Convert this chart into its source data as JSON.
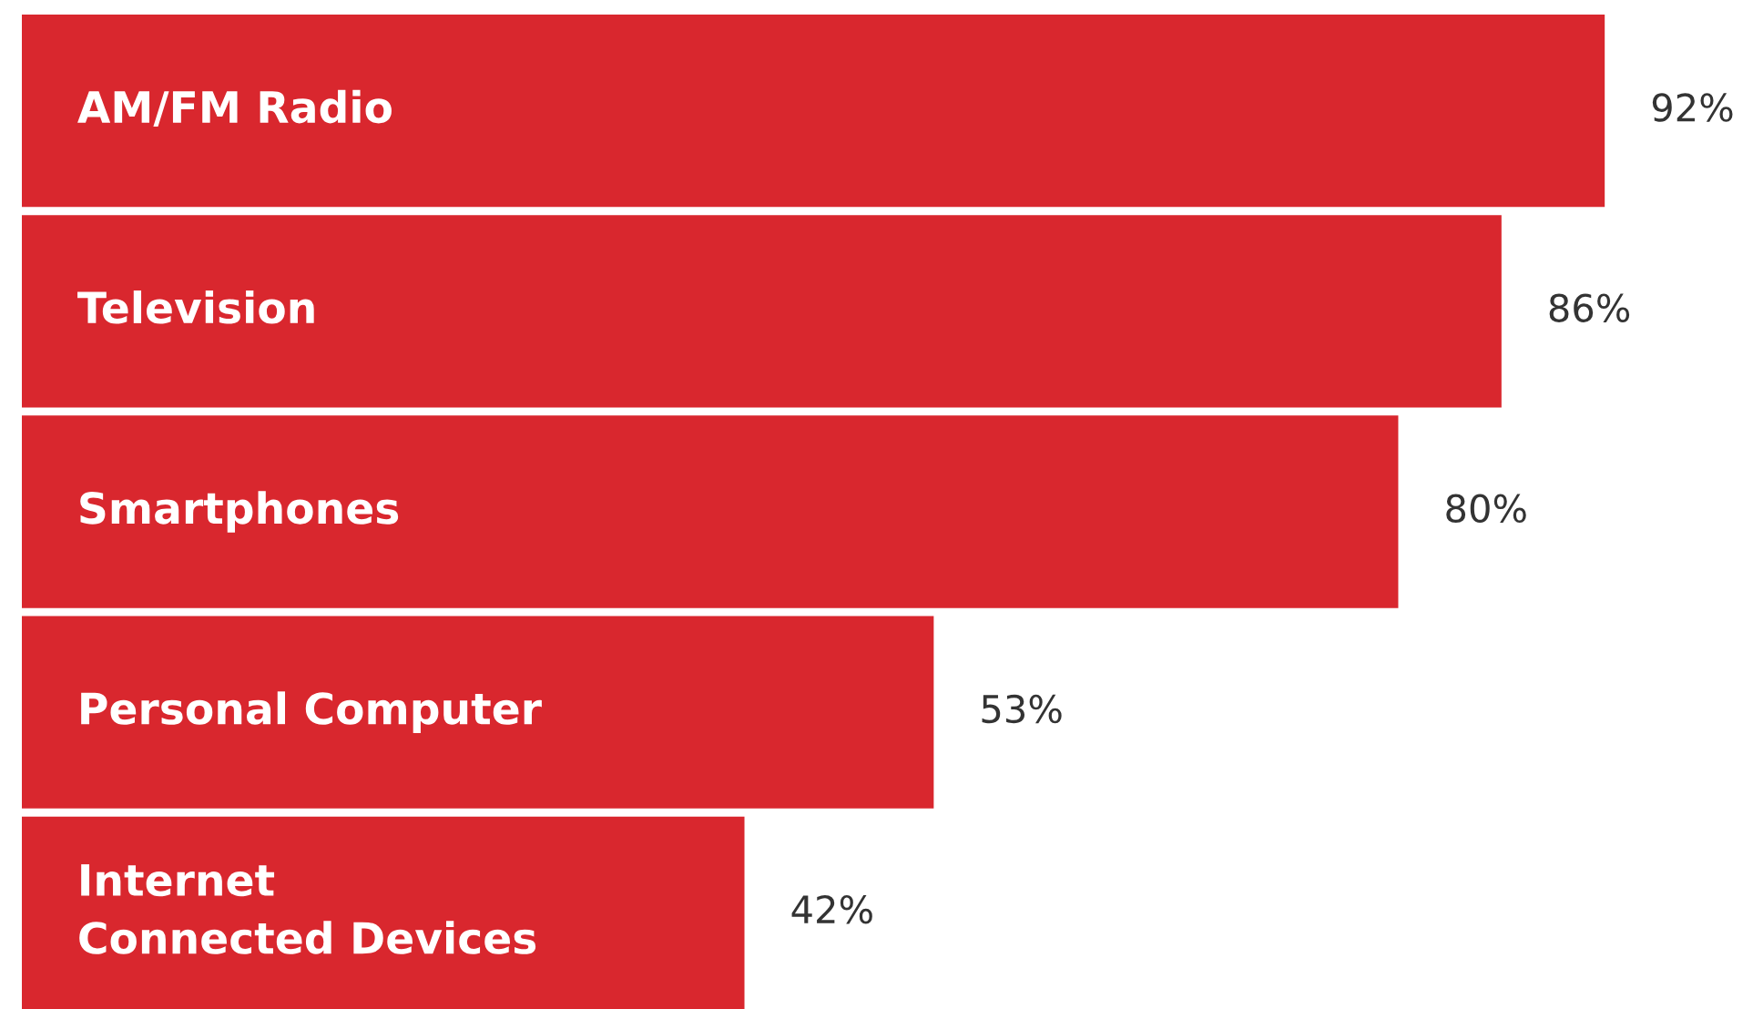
{
  "chart_data": {
    "type": "bar",
    "orientation": "horizontal",
    "categories": [
      "AM/FM Radio",
      "Television",
      "Smartphones",
      "Personal Computer",
      "Internet\nConnected Devices"
    ],
    "values": [
      92,
      86,
      80,
      53,
      42
    ],
    "value_labels": [
      "92%",
      "86%",
      "80%",
      "53%",
      "42%"
    ],
    "color": "#d9272e"
  }
}
